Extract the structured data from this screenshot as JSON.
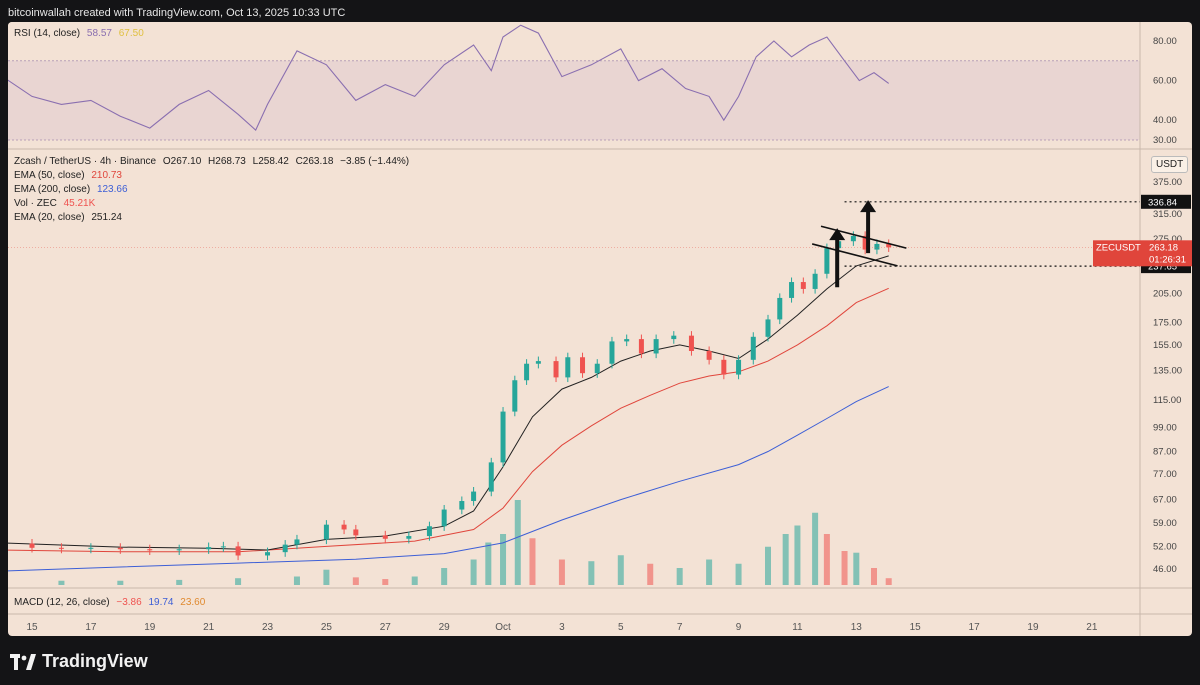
{
  "header": "bitcoinwallah created with TradingView.com, Oct 13, 2025 10:33 UTC",
  "brand": "TradingView",
  "colors": {
    "up": "#26a69a",
    "down": "#ef5350",
    "ema20": "#222222",
    "ema50": "#e0463c",
    "ema200": "#3d5fd6",
    "rsi": "#8a6fb0",
    "rsi_ma": "#e0c040"
  },
  "rsi_legend": {
    "name": "RSI (14, close)",
    "value": "58.57",
    "ma_value": "67.50"
  },
  "main_legend": {
    "symbol": "Zcash / TetherUS · 4h · Binance",
    "open": "O267.10",
    "high": "H268.73",
    "low": "L258.42",
    "close": "C263.18",
    "change": "−3.85 (−1.44%)",
    "ema50_name": "EMA (50, close)",
    "ema50_value": "210.73",
    "ema200_name": "EMA (200, close)",
    "ema200_value": "123.66",
    "vol_name": "Vol · ZEC",
    "vol_value": "45.21K",
    "ema20_name": "EMA (20, close)",
    "ema20_value": "251.24"
  },
  "macd_legend": {
    "name": "MACD (12, 26, close)",
    "v1": "−3.86",
    "v2": "19.74",
    "v3": "23.60"
  },
  "currency": "USDT",
  "chart_data": {
    "type": "line",
    "price_scale": "log",
    "x_ticks": [
      "15",
      "17",
      "19",
      "21",
      "23",
      "25",
      "27",
      "29",
      "Oct",
      "3",
      "5",
      "7",
      "9",
      "11",
      "13",
      "15",
      "17",
      "19",
      "21"
    ],
    "y_ticks": [
      375.0,
      315.0,
      275.0,
      205.0,
      175.0,
      155.0,
      135.0,
      115.0,
      99.0,
      87.0,
      77.0,
      67.0,
      59.0,
      52.0,
      46.0
    ],
    "rsi_ticks": [
      80.0,
      60.0,
      40.0,
      30.0
    ],
    "rsi_band": [
      30,
      70
    ],
    "price_tag": {
      "label": "ZECUSDT",
      "value": "263.18",
      "countdown": "01:26:31"
    },
    "levels": [
      336.84,
      237.65
    ],
    "close_series": [
      {
        "day": 14,
        "price": 52.8
      },
      {
        "day": 15,
        "price": 51.6
      },
      {
        "day": 16,
        "price": 51.4
      },
      {
        "day": 17,
        "price": 51.6
      },
      {
        "day": 18,
        "price": 51.2
      },
      {
        "day": 19,
        "price": 50.9
      },
      {
        "day": 20,
        "price": 51.2
      },
      {
        "day": 21,
        "price": 51.8
      },
      {
        "day": 21.5,
        "price": 52.0
      },
      {
        "day": 22,
        "price": 49.5
      },
      {
        "day": 23,
        "price": 50.4
      },
      {
        "day": 23.6,
        "price": 52.5
      },
      {
        "day": 24,
        "price": 54.0
      },
      {
        "day": 25,
        "price": 58.5
      },
      {
        "day": 25.6,
        "price": 57.0
      },
      {
        "day": 26,
        "price": 55.2
      },
      {
        "day": 27,
        "price": 54.2
      },
      {
        "day": 27.8,
        "price": 55.0
      },
      {
        "day": 28.5,
        "price": 58.0
      },
      {
        "day": 29,
        "price": 63.5
      },
      {
        "day": 29.6,
        "price": 66.5
      },
      {
        "day": 30,
        "price": 70.0
      },
      {
        "day": 30.6,
        "price": 82.0
      },
      {
        "day": 31,
        "price": 108.0
      },
      {
        "day": 31.4,
        "price": 128.0
      },
      {
        "day": 31.8,
        "price": 140.0
      },
      {
        "day": 32.2,
        "price": 142.0
      },
      {
        "day": 32.8,
        "price": 130.0
      },
      {
        "day": 33.2,
        "price": 145.0
      },
      {
        "day": 33.7,
        "price": 133.0
      },
      {
        "day": 34.2,
        "price": 140.0
      },
      {
        "day": 34.7,
        "price": 158.0
      },
      {
        "day": 35.2,
        "price": 160.0
      },
      {
        "day": 35.7,
        "price": 148.0
      },
      {
        "day": 36.2,
        "price": 160.0
      },
      {
        "day": 36.8,
        "price": 163.0
      },
      {
        "day": 37.4,
        "price": 150.0
      },
      {
        "day": 38.0,
        "price": 143.0
      },
      {
        "day": 38.5,
        "price": 132.0
      },
      {
        "day": 39.0,
        "price": 143.0
      },
      {
        "day": 39.5,
        "price": 162.0
      },
      {
        "day": 40.0,
        "price": 178.0
      },
      {
        "day": 40.4,
        "price": 200.0
      },
      {
        "day": 40.8,
        "price": 218.0
      },
      {
        "day": 41.2,
        "price": 210.0
      },
      {
        "day": 41.6,
        "price": 228.0
      },
      {
        "day": 42.0,
        "price": 262.0
      },
      {
        "day": 42.4,
        "price": 272.0
      },
      {
        "day": 42.9,
        "price": 280.0
      },
      {
        "day": 43.3,
        "price": 260.0
      },
      {
        "day": 43.7,
        "price": 268.0
      },
      {
        "day": 44.1,
        "price": 263.18
      }
    ],
    "ema20": [
      {
        "day": 14,
        "price": 53.0
      },
      {
        "day": 18,
        "price": 51.8
      },
      {
        "day": 21,
        "price": 51.5
      },
      {
        "day": 23,
        "price": 51.0
      },
      {
        "day": 25,
        "price": 54.0
      },
      {
        "day": 27,
        "price": 55.0
      },
      {
        "day": 29,
        "price": 58.0
      },
      {
        "day": 30,
        "price": 63.0
      },
      {
        "day": 31,
        "price": 80.0
      },
      {
        "day": 32,
        "price": 105.0
      },
      {
        "day": 33,
        "price": 122.0
      },
      {
        "day": 34,
        "price": 130.0
      },
      {
        "day": 35,
        "price": 142.0
      },
      {
        "day": 36,
        "price": 150.0
      },
      {
        "day": 37,
        "price": 155.0
      },
      {
        "day": 38,
        "price": 150.0
      },
      {
        "day": 39,
        "price": 144.0
      },
      {
        "day": 40,
        "price": 160.0
      },
      {
        "day": 41,
        "price": 182.0
      },
      {
        "day": 42,
        "price": 210.0
      },
      {
        "day": 43,
        "price": 238.0
      },
      {
        "day": 44.1,
        "price": 251.24
      }
    ],
    "ema50": [
      {
        "day": 14,
        "price": 51.0
      },
      {
        "day": 18,
        "price": 50.5
      },
      {
        "day": 22,
        "price": 50.5
      },
      {
        "day": 25,
        "price": 52.0
      },
      {
        "day": 28,
        "price": 53.5
      },
      {
        "day": 30,
        "price": 57.0
      },
      {
        "day": 31,
        "price": 64.0
      },
      {
        "day": 32,
        "price": 78.0
      },
      {
        "day": 33,
        "price": 90.0
      },
      {
        "day": 34,
        "price": 100.0
      },
      {
        "day": 35,
        "price": 110.0
      },
      {
        "day": 36,
        "price": 118.0
      },
      {
        "day": 37,
        "price": 126.0
      },
      {
        "day": 38,
        "price": 131.0
      },
      {
        "day": 39,
        "price": 134.0
      },
      {
        "day": 40,
        "price": 142.0
      },
      {
        "day": 41,
        "price": 155.0
      },
      {
        "day": 42,
        "price": 172.0
      },
      {
        "day": 43,
        "price": 195.0
      },
      {
        "day": 44.1,
        "price": 210.73
      }
    ],
    "ema200": [
      {
        "day": 14,
        "price": 45.5
      },
      {
        "day": 18,
        "price": 46.5
      },
      {
        "day": 22,
        "price": 47.5
      },
      {
        "day": 26,
        "price": 48.5
      },
      {
        "day": 29,
        "price": 50.0
      },
      {
        "day": 31,
        "price": 53.0
      },
      {
        "day": 33,
        "price": 60.0
      },
      {
        "day": 35,
        "price": 67.0
      },
      {
        "day": 37,
        "price": 74.0
      },
      {
        "day": 39,
        "price": 81.0
      },
      {
        "day": 40,
        "price": 87.0
      },
      {
        "day": 41,
        "price": 95.0
      },
      {
        "day": 42,
        "price": 104.0
      },
      {
        "day": 43,
        "price": 114.0
      },
      {
        "day": 44.1,
        "price": 123.66
      }
    ],
    "rsi": [
      {
        "day": 14,
        "value": 62
      },
      {
        "day": 15,
        "value": 52
      },
      {
        "day": 16,
        "value": 48
      },
      {
        "day": 17,
        "value": 50
      },
      {
        "day": 18,
        "value": 42
      },
      {
        "day": 19,
        "value": 36
      },
      {
        "day": 20,
        "value": 48
      },
      {
        "day": 21,
        "value": 55
      },
      {
        "day": 22,
        "value": 43
      },
      {
        "day": 22.6,
        "value": 35
      },
      {
        "day": 23,
        "value": 48
      },
      {
        "day": 24,
        "value": 75
      },
      {
        "day": 25,
        "value": 68
      },
      {
        "day": 26,
        "value": 50
      },
      {
        "day": 27,
        "value": 58
      },
      {
        "day": 28,
        "value": 52
      },
      {
        "day": 29,
        "value": 68
      },
      {
        "day": 30,
        "value": 78
      },
      {
        "day": 30.6,
        "value": 65
      },
      {
        "day": 31,
        "value": 82
      },
      {
        "day": 31.6,
        "value": 88
      },
      {
        "day": 32.2,
        "value": 84
      },
      {
        "day": 33,
        "value": 62
      },
      {
        "day": 34,
        "value": 68
      },
      {
        "day": 35,
        "value": 76
      },
      {
        "day": 35.6,
        "value": 60
      },
      {
        "day": 36.4,
        "value": 66
      },
      {
        "day": 37.2,
        "value": 56
      },
      {
        "day": 38,
        "value": 52
      },
      {
        "day": 38.5,
        "value": 40
      },
      {
        "day": 39,
        "value": 52
      },
      {
        "day": 39.6,
        "value": 72
      },
      {
        "day": 40.2,
        "value": 80
      },
      {
        "day": 40.8,
        "value": 72
      },
      {
        "day": 41.4,
        "value": 78
      },
      {
        "day": 42,
        "value": 82
      },
      {
        "day": 42.6,
        "value": 70
      },
      {
        "day": 43.1,
        "value": 60
      },
      {
        "day": 43.6,
        "value": 64
      },
      {
        "day": 44.1,
        "value": 58.57
      }
    ],
    "volume": [
      {
        "day": 14,
        "vol": 6
      },
      {
        "day": 16,
        "vol": 5
      },
      {
        "day": 18,
        "vol": 5
      },
      {
        "day": 20,
        "vol": 6
      },
      {
        "day": 22,
        "vol": 8
      },
      {
        "day": 24,
        "vol": 10
      },
      {
        "day": 25,
        "vol": 18
      },
      {
        "day": 26,
        "vol": 9
      },
      {
        "day": 27,
        "vol": 7
      },
      {
        "day": 28,
        "vol": 10
      },
      {
        "day": 29,
        "vol": 20
      },
      {
        "day": 30,
        "vol": 30
      },
      {
        "day": 30.5,
        "vol": 50
      },
      {
        "day": 31,
        "vol": 60
      },
      {
        "day": 31.5,
        "vol": 100
      },
      {
        "day": 32,
        "vol": 55
      },
      {
        "day": 33,
        "vol": 30
      },
      {
        "day": 34,
        "vol": 28
      },
      {
        "day": 35,
        "vol": 35
      },
      {
        "day": 36,
        "vol": 25
      },
      {
        "day": 37,
        "vol": 20
      },
      {
        "day": 38,
        "vol": 30
      },
      {
        "day": 39,
        "vol": 25
      },
      {
        "day": 40,
        "vol": 45
      },
      {
        "day": 40.6,
        "vol": 60
      },
      {
        "day": 41,
        "vol": 70
      },
      {
        "day": 41.6,
        "vol": 85
      },
      {
        "day": 42,
        "vol": 60
      },
      {
        "day": 42.6,
        "vol": 40
      },
      {
        "day": 43,
        "vol": 38
      },
      {
        "day": 43.6,
        "vol": 20
      },
      {
        "day": 44.1,
        "vol": 8
      }
    ]
  }
}
